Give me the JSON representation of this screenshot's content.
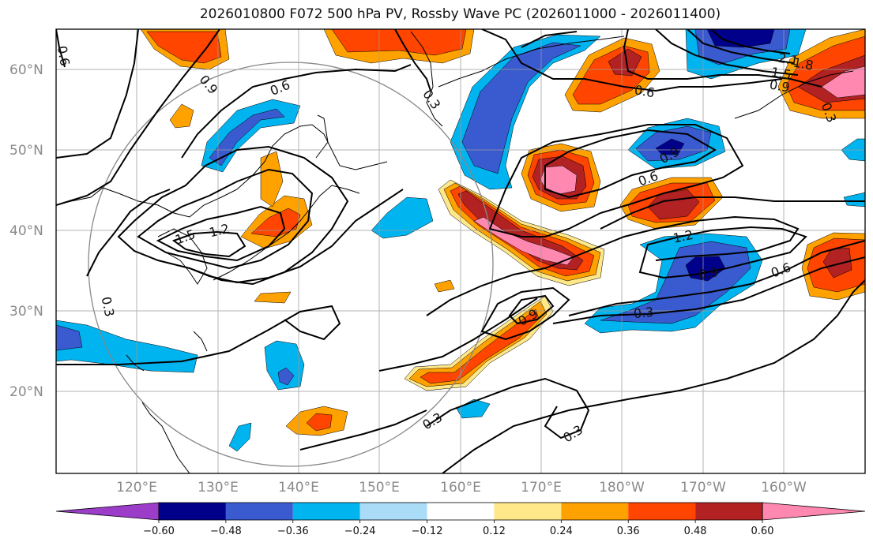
{
  "title": "2026010800 F072 500 hPa PV, Rossby Wave PC (2026011000 - 2026011400)",
  "lat_labels": [
    "60°N",
    "50°N",
    "40°N",
    "30°N",
    "20°N"
  ],
  "lon_labels": [
    "120°E",
    "130°E",
    "140°E",
    "150°E",
    "160°E",
    "170°E",
    "180°W",
    "170°W",
    "160°W"
  ],
  "colorbar": {
    "ticks": [
      "−0.60",
      "−0.48",
      "−0.36",
      "−0.24",
      "−0.12",
      "0.12",
      "0.24",
      "0.36",
      "0.48",
      "0.60"
    ],
    "colors": [
      "#9b3dc8",
      "#00008b",
      "#3a5bd0",
      "#00b4f0",
      "#aadcf8",
      "#ffffff",
      "#ffe88a",
      "#ffa200",
      "#ff4500",
      "#b22222",
      "#ff88b0"
    ]
  },
  "contour_labels": [
    "0.6",
    "0.9",
    "0.6",
    "0.3",
    "0.6",
    "0.9",
    "0.6",
    "1.2",
    "0.9",
    "0.6",
    "0.3",
    "0.9",
    "0.3",
    "0.3",
    "0.3",
    "1.5",
    "1.2",
    "2.1",
    "1.8",
    "1.5",
    "0.9",
    "0.3"
  ]
}
